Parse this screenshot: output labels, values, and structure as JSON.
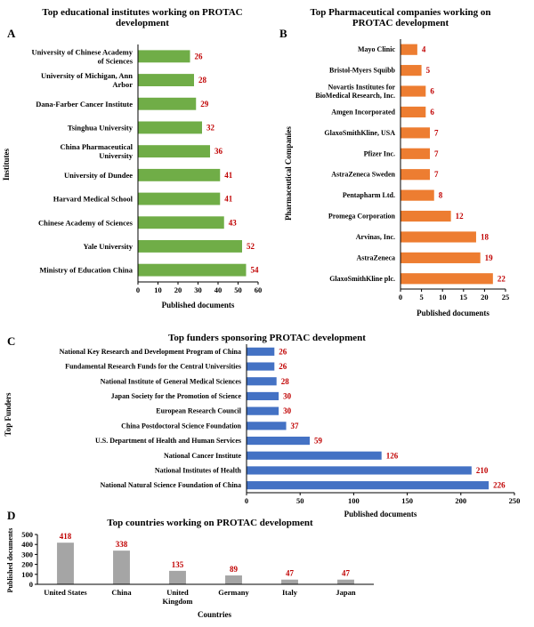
{
  "colors": {
    "green": "#70ad47",
    "orange": "#ed7d31",
    "blue": "#4472c4",
    "gray": "#a5a5a5",
    "label_red": "#c00000",
    "axis": "#000000"
  },
  "chart_data": [
    {
      "panel": "A",
      "type": "bar",
      "orientation": "horizontal",
      "title": [
        "Top educational institutes working on PROTAC",
        "development"
      ],
      "ylabel": "Institutes",
      "xlabel": "Published documents",
      "categories": [
        [
          "University of Chinese Academy",
          "of Sciences"
        ],
        [
          "University of Michigan, Ann",
          "Arbor"
        ],
        [
          "Dana-Farber Cancer Institute"
        ],
        [
          "Tsinghua University"
        ],
        [
          "China Pharmaceutical",
          "University"
        ],
        [
          "University of Dundee"
        ],
        [
          "Harvard Medical School"
        ],
        [
          "Chinese Academy of Sciences"
        ],
        [
          "Yale University"
        ],
        [
          "Ministry of Education China"
        ]
      ],
      "values": [
        26,
        28,
        29,
        32,
        36,
        41,
        41,
        43,
        52,
        54
      ],
      "xlim": [
        0,
        60
      ],
      "xticks": [
        0,
        10,
        20,
        30,
        40,
        50,
        60
      ],
      "color": "#70ad47"
    },
    {
      "panel": "B",
      "type": "bar",
      "orientation": "horizontal",
      "title": [
        "Top Pharmaceutical companies working on",
        "PROTAC development"
      ],
      "ylabel": "Pharmaceutical Companies",
      "xlabel": "Published documents",
      "categories": [
        [
          "Mayo Clinic"
        ],
        [
          "Bristol-Myers Squibb"
        ],
        [
          "Novartis Institutes for",
          "BioMedical Research, Inc."
        ],
        [
          "Amgen Incorporated"
        ],
        [
          "GlaxoSmithKline, USA"
        ],
        [
          "Pfizer Inc."
        ],
        [
          "AstraZeneca Sweden"
        ],
        [
          "Pentapharm Ltd."
        ],
        [
          "Promega Corporation"
        ],
        [
          "Arvinas, Inc."
        ],
        [
          "AstraZeneca"
        ],
        [
          "GlaxoSmithKline plc."
        ]
      ],
      "values": [
        4,
        5,
        6,
        6,
        7,
        7,
        7,
        8,
        12,
        18,
        19,
        22
      ],
      "xlim": [
        0,
        25
      ],
      "xticks": [
        0,
        5,
        10,
        15,
        20,
        25
      ],
      "color": "#ed7d31"
    },
    {
      "panel": "C",
      "type": "bar",
      "orientation": "horizontal",
      "title": [
        "Top funders sponsoring PROTAC development"
      ],
      "ylabel": "Top Funders",
      "xlabel": "Published documents",
      "categories": [
        [
          "National Key Research and Development Program of China"
        ],
        [
          "Fundamental Research Funds for the Central Universities"
        ],
        [
          "National Institute of General Medical Sciences"
        ],
        [
          "Japan Society for the Promotion of Science"
        ],
        [
          "European Research Council"
        ],
        [
          "China Postdoctoral Science Foundation"
        ],
        [
          "U.S. Department of Health and Human Services"
        ],
        [
          "National Cancer Institute"
        ],
        [
          "National Institutes of Health"
        ],
        [
          "National Natural Science Foundation of China"
        ]
      ],
      "values": [
        26,
        26,
        28,
        30,
        30,
        37,
        59,
        126,
        210,
        226
      ],
      "xlim": [
        0,
        250
      ],
      "xticks": [
        0,
        50,
        100,
        150,
        200,
        250
      ],
      "color": "#4472c4"
    },
    {
      "panel": "D",
      "type": "bar",
      "orientation": "vertical",
      "title": [
        "Top countries working on PROTAC development"
      ],
      "ylabel": "Published documents",
      "xlabel": "Countries",
      "categories": [
        [
          "United States"
        ],
        [
          "China"
        ],
        [
          "United",
          "Kingdom"
        ],
        [
          "Germany"
        ],
        [
          "Italy"
        ],
        [
          "Japan"
        ]
      ],
      "values": [
        418,
        338,
        135,
        89,
        47,
        47
      ],
      "ylim": [
        0,
        500
      ],
      "yticks": [
        0,
        100,
        200,
        300,
        400,
        500
      ],
      "color": "#a5a5a5"
    }
  ]
}
